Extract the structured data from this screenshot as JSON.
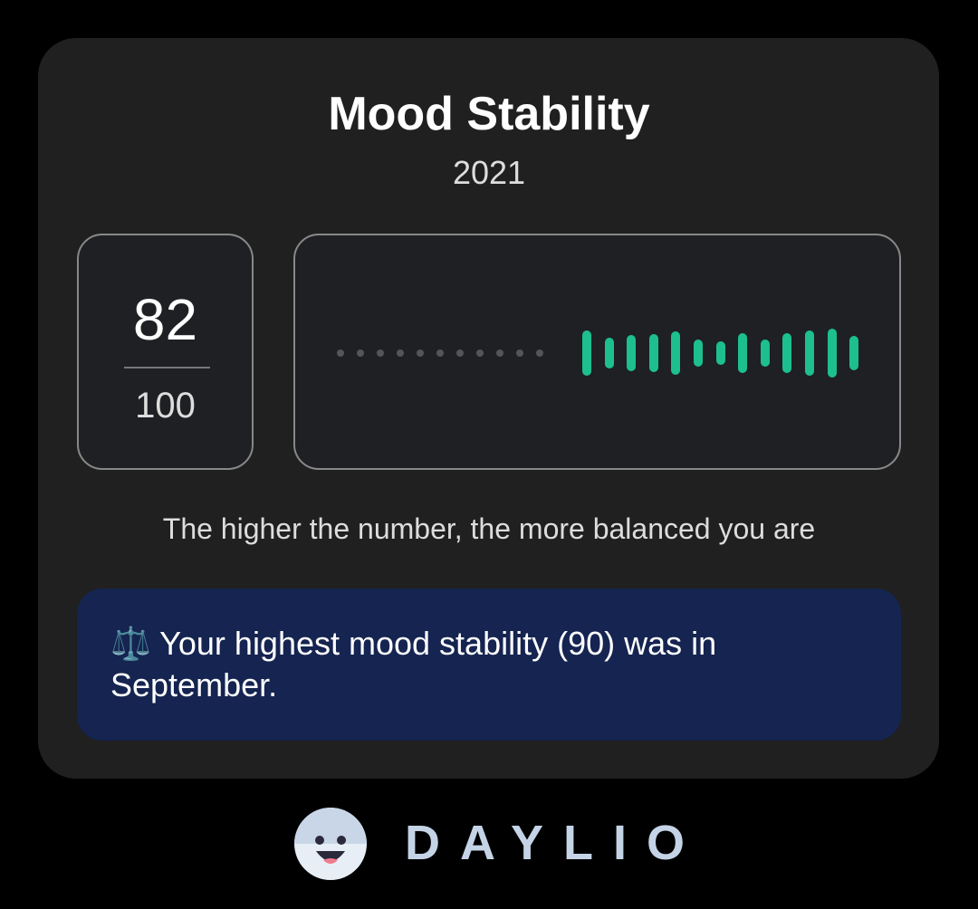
{
  "card": {
    "title": "Mood Stability",
    "year": "2021",
    "score": "82",
    "max": "100",
    "caption": "The higher the number, the more balanced you are",
    "note": "⚖️ Your highest mood stability (90) was in September."
  },
  "footer": {
    "logo": "DAYLIO"
  }
}
